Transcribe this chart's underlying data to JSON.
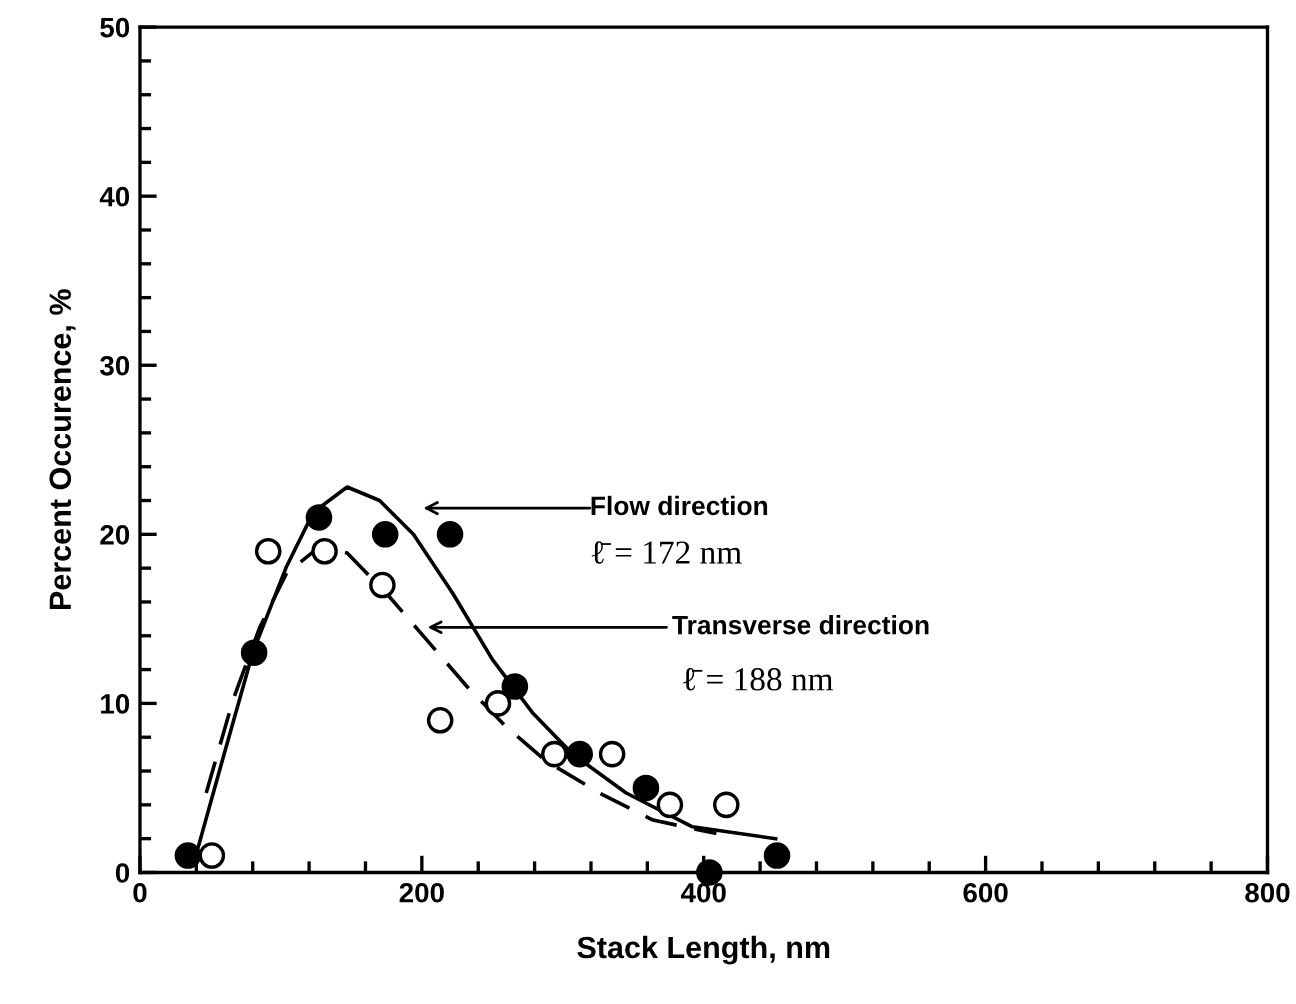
{
  "chart_data": {
    "type": "scatter",
    "xlabel": "Stack Length, nm",
    "ylabel": "Percent Occurence, %",
    "xlim": [
      0,
      800
    ],
    "ylim": [
      0,
      50
    ],
    "xticks": [
      0,
      200,
      400,
      600,
      800
    ],
    "yticks": [
      0,
      10,
      20,
      30,
      40,
      50
    ],
    "grid": false,
    "marker": "circle",
    "series": [
      {
        "color": "#000000",
        "x": [
          34,
          81,
          127,
          174,
          220,
          266,
          312,
          359,
          404,
          452
        ],
        "values": [
          1,
          13,
          21,
          20,
          20,
          11,
          7,
          5,
          0,
          1
        ]
      },
      {
        "color": "#ffffff",
        "x": [
          51,
          91,
          131,
          172,
          213,
          254,
          294,
          335,
          376,
          416
        ],
        "values": [
          1,
          19,
          19,
          17,
          9,
          10,
          7,
          7,
          4,
          4
        ]
      },
      {
        "type": "line",
        "color": "#000000",
        "line_style": "solid",
        "marker": "none",
        "x": [
          40,
          57,
          80,
          104,
          123,
          147,
          170,
          194,
          222,
          250,
          279,
          307,
          345,
          392,
          451
        ],
        "values": [
          1.1,
          6.2,
          13,
          18.1,
          21.3,
          22.8,
          22,
          20,
          16.5,
          12.6,
          9.4,
          7,
          4.7,
          2.7,
          2.0
        ]
      },
      {
        "type": "line",
        "color": "#000000",
        "line_style": "dashed",
        "marker": "none",
        "x": [
          47,
          66,
          85,
          104,
          128,
          147,
          175,
          203,
          232,
          260,
          288,
          326,
          364,
          409
        ],
        "values": [
          4.7,
          10.2,
          14.5,
          17.7,
          19.3,
          18.9,
          16.5,
          13.8,
          11,
          8.6,
          6.6,
          4.7,
          3.1,
          2.3
        ]
      }
    ],
    "annotations": [
      "Flow direction",
      "ℓ̄ = 172 nm",
      {
        "text": "Transverse direction",
        "x": 204,
        "y": 14.5
      },
      "ℓ̄ = 188 nm"
    ]
  }
}
